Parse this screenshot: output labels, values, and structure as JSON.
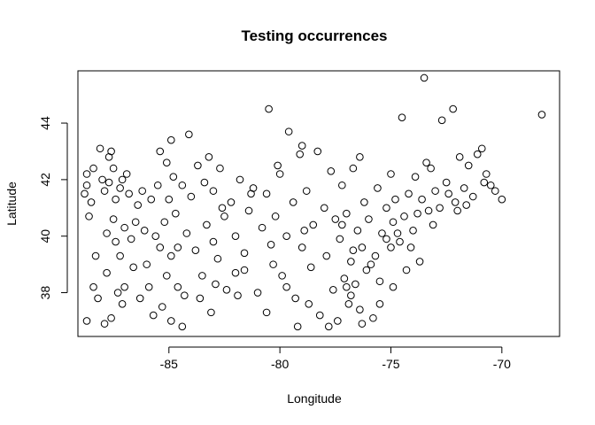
{
  "chart_data": {
    "type": "scatter",
    "title": "Testing occurrences",
    "xlabel": "Longitude",
    "ylabel": "Latitude",
    "xlim": [
      -89.1,
      -67.4
    ],
    "ylim": [
      36.45,
      45.85
    ],
    "xticks": [
      -85,
      -80,
      -75,
      -70
    ],
    "yticks": [
      38,
      40,
      42,
      44
    ],
    "grid": false,
    "legend": "none",
    "marker": "open-circle",
    "points": [
      [
        -88.8,
        41.5
      ],
      [
        -88.7,
        41.8
      ],
      [
        -88.7,
        42.2
      ],
      [
        -88.6,
        40.7
      ],
      [
        -88.5,
        41.2
      ],
      [
        -88.4,
        42.4
      ],
      [
        -88.4,
        38.2
      ],
      [
        -88.1,
        43.1
      ],
      [
        -88.0,
        42.0
      ],
      [
        -87.9,
        41.6
      ],
      [
        -87.8,
        40.1
      ],
      [
        -87.8,
        38.7
      ],
      [
        -87.7,
        42.8
      ],
      [
        -87.7,
        41.9
      ],
      [
        -87.6,
        43.0
      ],
      [
        -87.6,
        37.1
      ],
      [
        -87.5,
        42.4
      ],
      [
        -87.5,
        40.6
      ],
      [
        -87.4,
        41.3
      ],
      [
        -87.4,
        39.8
      ],
      [
        -87.3,
        38.0
      ],
      [
        -87.2,
        41.7
      ],
      [
        -87.1,
        42.0
      ],
      [
        -87.0,
        40.3
      ],
      [
        -87.0,
        38.2
      ],
      [
        -86.8,
        41.5
      ],
      [
        -86.7,
        39.9
      ],
      [
        -86.5,
        40.5
      ],
      [
        -86.4,
        41.1
      ],
      [
        -86.2,
        41.6
      ],
      [
        -86.0,
        39.0
      ],
      [
        -85.9,
        38.2
      ],
      [
        -85.8,
        41.3
      ],
      [
        -85.6,
        40.0
      ],
      [
        -85.5,
        41.8
      ],
      [
        -85.4,
        39.6
      ],
      [
        -85.3,
        37.5
      ],
      [
        -85.2,
        40.5
      ],
      [
        -85.1,
        42.6
      ],
      [
        -85.0,
        41.3
      ],
      [
        -84.9,
        39.3
      ],
      [
        -84.8,
        42.1
      ],
      [
        -84.7,
        40.8
      ],
      [
        -84.6,
        38.2
      ],
      [
        -84.4,
        41.8
      ],
      [
        -84.3,
        37.9
      ],
      [
        -84.2,
        40.1
      ],
      [
        -84.1,
        43.6
      ],
      [
        -84.0,
        41.4
      ],
      [
        -83.8,
        39.5
      ],
      [
        -83.7,
        42.5
      ],
      [
        -83.5,
        38.6
      ],
      [
        -83.4,
        41.9
      ],
      [
        -83.3,
        40.4
      ],
      [
        -83.1,
        37.3
      ],
      [
        -83.0,
        41.6
      ],
      [
        -82.8,
        39.2
      ],
      [
        -82.7,
        42.4
      ],
      [
        -82.5,
        40.7
      ],
      [
        -82.4,
        38.1
      ],
      [
        -82.2,
        41.2
      ],
      [
        -82.0,
        40.0
      ],
      [
        -81.8,
        42.0
      ],
      [
        -81.6,
        39.4
      ],
      [
        -81.4,
        40.9
      ],
      [
        -81.2,
        41.7
      ],
      [
        -81.0,
        38.0
      ],
      [
        -80.8,
        40.3
      ],
      [
        -80.6,
        41.5
      ],
      [
        -80.5,
        44.5
      ],
      [
        -80.3,
        39.0
      ],
      [
        -80.2,
        40.7
      ],
      [
        -80.0,
        42.2
      ],
      [
        -79.9,
        38.6
      ],
      [
        -79.7,
        40.0
      ],
      [
        -79.6,
        43.7
      ],
      [
        -79.4,
        41.2
      ],
      [
        -79.3,
        37.8
      ],
      [
        -79.1,
        42.9
      ],
      [
        -79.0,
        39.6
      ],
      [
        -78.8,
        41.6
      ],
      [
        -78.6,
        38.9
      ],
      [
        -78.5,
        40.4
      ],
      [
        -78.3,
        43.0
      ],
      [
        -78.2,
        37.2
      ],
      [
        -78.0,
        41.0
      ],
      [
        -77.9,
        39.3
      ],
      [
        -77.7,
        42.3
      ],
      [
        -77.6,
        38.1
      ],
      [
        -77.5,
        40.6
      ],
      [
        -77.4,
        37.0
      ],
      [
        -77.3,
        39.9
      ],
      [
        -77.2,
        41.8
      ],
      [
        -77.1,
        38.5
      ],
      [
        -77.0,
        40.8
      ],
      [
        -76.9,
        37.6
      ],
      [
        -76.8,
        39.1
      ],
      [
        -76.7,
        42.4
      ],
      [
        -76.6,
        38.3
      ],
      [
        -76.5,
        40.2
      ],
      [
        -76.4,
        37.4
      ],
      [
        -76.3,
        39.6
      ],
      [
        -76.2,
        41.2
      ],
      [
        -76.1,
        38.8
      ],
      [
        -76.0,
        40.6
      ],
      [
        -75.8,
        37.1
      ],
      [
        -75.7,
        39.3
      ],
      [
        -75.6,
        41.7
      ],
      [
        -75.5,
        38.4
      ],
      [
        -75.4,
        40.1
      ],
      [
        -75.2,
        41.0
      ],
      [
        -75.0,
        39.6
      ],
      [
        -74.9,
        40.5
      ],
      [
        -74.8,
        41.3
      ],
      [
        -74.6,
        39.8
      ],
      [
        -74.5,
        44.2
      ],
      [
        -74.4,
        40.7
      ],
      [
        -74.2,
        41.5
      ],
      [
        -74.0,
        40.2
      ],
      [
        -73.9,
        42.1
      ],
      [
        -73.8,
        40.8
      ],
      [
        -73.6,
        41.3
      ],
      [
        -73.5,
        45.6
      ],
      [
        -73.3,
        40.9
      ],
      [
        -73.2,
        42.4
      ],
      [
        -73.0,
        41.6
      ],
      [
        -72.8,
        41.0
      ],
      [
        -72.7,
        44.1
      ],
      [
        -72.5,
        41.9
      ],
      [
        -72.4,
        41.5
      ],
      [
        -72.2,
        44.5
      ],
      [
        -72.1,
        41.2
      ],
      [
        -71.9,
        42.8
      ],
      [
        -71.7,
        41.7
      ],
      [
        -71.5,
        42.5
      ],
      [
        -71.3,
        41.4
      ],
      [
        -71.1,
        42.9
      ],
      [
        -70.9,
        43.1
      ],
      [
        -70.7,
        42.2
      ],
      [
        -70.5,
        41.8
      ],
      [
        -70.3,
        41.6
      ],
      [
        -70.0,
        41.3
      ],
      [
        -68.2,
        44.3
      ],
      [
        -88.7,
        37.0
      ],
      [
        -88.2,
        37.8
      ],
      [
        -87.9,
        36.9
      ],
      [
        -87.1,
        37.6
      ],
      [
        -86.6,
        38.9
      ],
      [
        -86.3,
        37.8
      ],
      [
        -85.7,
        37.2
      ],
      [
        -84.9,
        37.0
      ],
      [
        -84.4,
        36.8
      ],
      [
        -83.6,
        37.8
      ],
      [
        -82.9,
        38.3
      ],
      [
        -81.9,
        37.9
      ],
      [
        -80.6,
        37.3
      ],
      [
        -79.2,
        36.8
      ],
      [
        -78.7,
        37.6
      ],
      [
        -77.8,
        36.8
      ],
      [
        -76.8,
        37.9
      ],
      [
        -76.3,
        36.9
      ],
      [
        -75.5,
        37.6
      ],
      [
        -74.9,
        38.2
      ],
      [
        -74.3,
        38.8
      ],
      [
        -73.7,
        39.1
      ],
      [
        -86.9,
        42.2
      ],
      [
        -85.4,
        43.0
      ],
      [
        -84.9,
        43.4
      ],
      [
        -83.2,
        42.8
      ],
      [
        -82.6,
        41.0
      ],
      [
        -81.3,
        41.5
      ],
      [
        -80.1,
        42.5
      ],
      [
        -79.0,
        43.2
      ],
      [
        -76.4,
        42.8
      ],
      [
        -75.0,
        42.2
      ],
      [
        -73.4,
        42.6
      ],
      [
        -71.6,
        41.1
      ],
      [
        -70.8,
        41.9
      ],
      [
        -87.2,
        39.3
      ],
      [
        -86.1,
        40.2
      ],
      [
        -84.6,
        39.6
      ],
      [
        -83.0,
        39.8
      ],
      [
        -81.6,
        38.8
      ],
      [
        -80.4,
        39.7
      ],
      [
        -78.9,
        40.2
      ],
      [
        -77.2,
        40.4
      ],
      [
        -76.7,
        39.5
      ],
      [
        -75.2,
        39.9
      ],
      [
        -74.1,
        39.6
      ],
      [
        -88.3,
        39.3
      ],
      [
        -85.1,
        38.6
      ],
      [
        -82.0,
        38.7
      ],
      [
        -79.7,
        38.2
      ],
      [
        -77.0,
        38.2
      ],
      [
        -75.9,
        39.0
      ],
      [
        -74.7,
        40.1
      ],
      [
        -73.1,
        40.4
      ],
      [
        -72.0,
        40.9
      ]
    ]
  }
}
